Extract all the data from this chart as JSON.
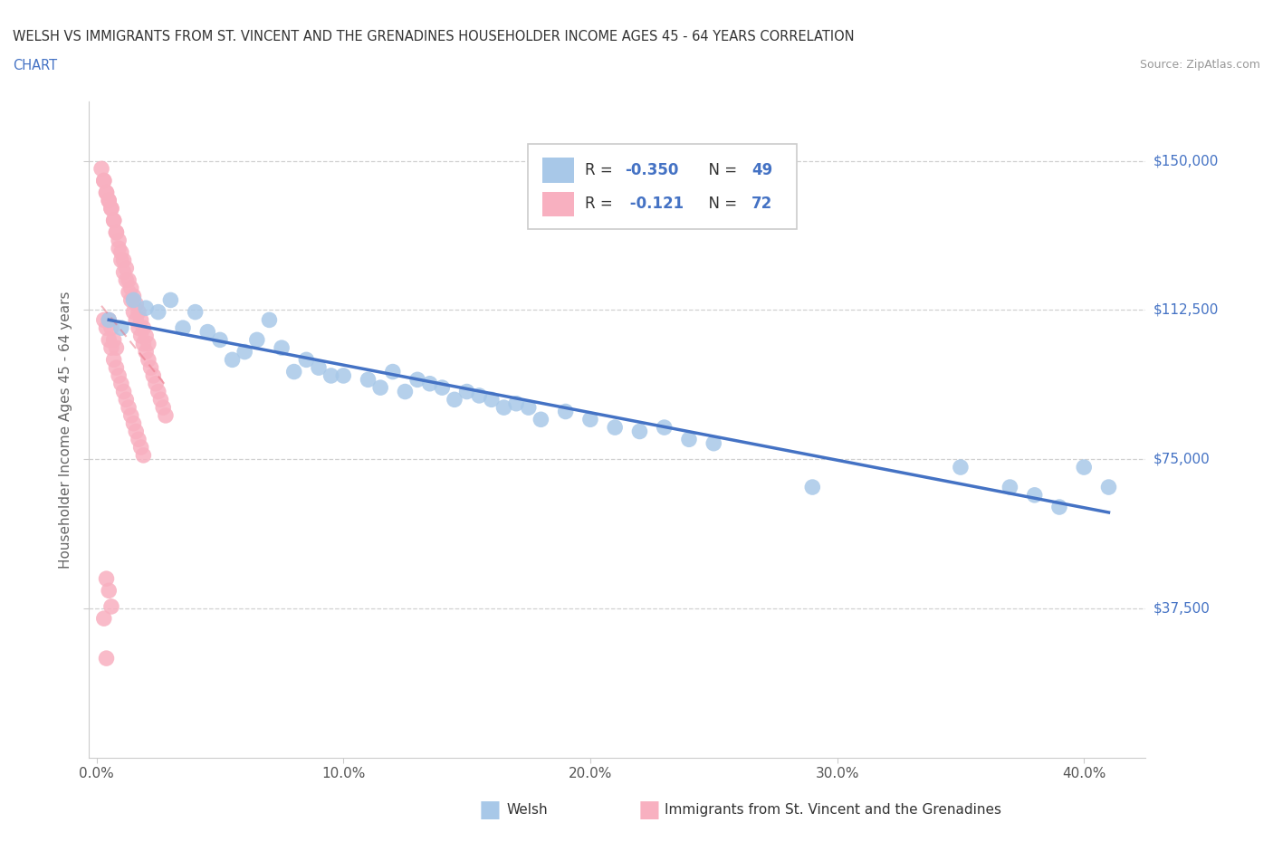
{
  "title_line1": "WELSH VS IMMIGRANTS FROM ST. VINCENT AND THE GRENADINES HOUSEHOLDER INCOME AGES 45 - 64 YEARS CORRELATION",
  "title_line2": "CHART",
  "source_text": "Source: ZipAtlas.com",
  "ylabel": "Householder Income Ages 45 - 64 years",
  "ytick_labels": [
    "$37,500",
    "$75,000",
    "$112,500",
    "$150,000"
  ],
  "ytick_values": [
    37500,
    75000,
    112500,
    150000
  ],
  "xtick_labels": [
    "0.0%",
    "10.0%",
    "20.0%",
    "30.0%",
    "40.0%"
  ],
  "xtick_positions": [
    0.0,
    0.1,
    0.2,
    0.3,
    0.4
  ],
  "xlim": [
    -0.003,
    0.425
  ],
  "ylim": [
    0,
    165000
  ],
  "welsh_R": -0.35,
  "welsh_N": 49,
  "svg_R": -0.121,
  "svg_N": 72,
  "welsh_color": "#a8c8e8",
  "svg_color": "#f8b0c0",
  "welsh_line_color": "#4472c4",
  "svg_line_color": "#e87080",
  "grid_color": "#d0d0d0",
  "title_color": "#333333",
  "chart_word_color": "#4472c4",
  "source_color": "#999999",
  "axis_label_color": "#666666",
  "right_label_color": "#4472c4",
  "welsh_x": [
    0.005,
    0.01,
    0.015,
    0.02,
    0.025,
    0.03,
    0.035,
    0.04,
    0.045,
    0.05,
    0.055,
    0.06,
    0.065,
    0.07,
    0.075,
    0.08,
    0.085,
    0.09,
    0.095,
    0.1,
    0.11,
    0.115,
    0.12,
    0.125,
    0.13,
    0.135,
    0.14,
    0.145,
    0.15,
    0.155,
    0.16,
    0.165,
    0.17,
    0.175,
    0.18,
    0.19,
    0.2,
    0.21,
    0.22,
    0.23,
    0.24,
    0.25,
    0.29,
    0.35,
    0.37,
    0.38,
    0.39,
    0.4,
    0.41
  ],
  "welsh_y": [
    110000,
    108000,
    115000,
    113000,
    112000,
    115000,
    108000,
    112000,
    107000,
    105000,
    100000,
    102000,
    105000,
    110000,
    103000,
    97000,
    100000,
    98000,
    96000,
    96000,
    95000,
    93000,
    97000,
    92000,
    95000,
    94000,
    93000,
    90000,
    92000,
    91000,
    90000,
    88000,
    89000,
    88000,
    85000,
    87000,
    85000,
    83000,
    82000,
    83000,
    80000,
    79000,
    68000,
    73000,
    68000,
    66000,
    63000,
    73000,
    68000
  ],
  "svg_x": [
    0.002,
    0.003,
    0.004,
    0.005,
    0.006,
    0.007,
    0.008,
    0.009,
    0.01,
    0.011,
    0.012,
    0.013,
    0.014,
    0.015,
    0.016,
    0.017,
    0.018,
    0.019,
    0.02,
    0.021,
    0.003,
    0.004,
    0.005,
    0.006,
    0.007,
    0.008,
    0.009,
    0.01,
    0.011,
    0.012,
    0.013,
    0.014,
    0.015,
    0.016,
    0.017,
    0.018,
    0.019,
    0.02,
    0.021,
    0.022,
    0.023,
    0.024,
    0.025,
    0.026,
    0.027,
    0.028,
    0.005,
    0.006,
    0.007,
    0.008,
    0.003,
    0.004,
    0.005,
    0.006,
    0.007,
    0.008,
    0.009,
    0.01,
    0.011,
    0.012,
    0.013,
    0.014,
    0.015,
    0.016,
    0.017,
    0.018,
    0.019,
    0.004,
    0.005,
    0.006,
    0.003,
    0.004
  ],
  "svg_y": [
    148000,
    145000,
    142000,
    140000,
    138000,
    135000,
    132000,
    130000,
    127000,
    125000,
    123000,
    120000,
    118000,
    116000,
    114000,
    112000,
    110000,
    108000,
    106000,
    104000,
    145000,
    142000,
    140000,
    138000,
    135000,
    132000,
    128000,
    125000,
    122000,
    120000,
    117000,
    115000,
    112000,
    110000,
    108000,
    106000,
    104000,
    102000,
    100000,
    98000,
    96000,
    94000,
    92000,
    90000,
    88000,
    86000,
    110000,
    108000,
    105000,
    103000,
    110000,
    108000,
    105000,
    103000,
    100000,
    98000,
    96000,
    94000,
    92000,
    90000,
    88000,
    86000,
    84000,
    82000,
    80000,
    78000,
    76000,
    45000,
    42000,
    38000,
    35000,
    25000
  ]
}
